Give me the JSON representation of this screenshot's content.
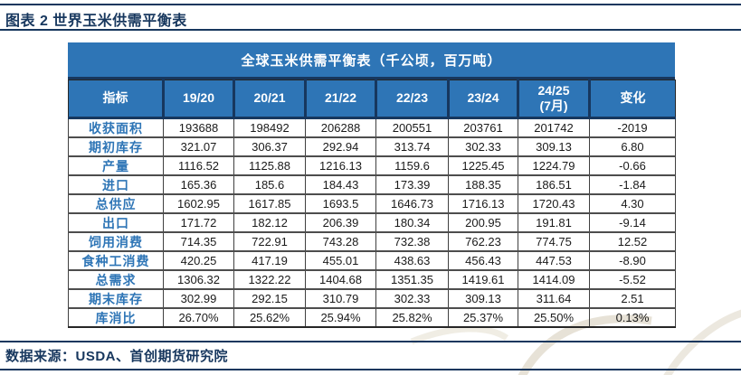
{
  "page": {
    "figure_title": "图表 2 世界玉米供需平衡表",
    "source_text": "数据来源：USDA、首创期货研究院"
  },
  "colors": {
    "header_blue": "#2E75B6",
    "navy": "#17375E",
    "row_label_blue": "#2E75B6",
    "body_text": "#1a1a1a"
  },
  "table": {
    "title": "全球玉米供需平衡表（千公顷，百万吨）",
    "columns": [
      "指标",
      "19/20",
      "20/21",
      "21/22",
      "22/23",
      "23/24",
      "24/25\n(7月)",
      "变化"
    ],
    "rows": [
      {
        "label": "收获面积",
        "values": [
          "193688",
          "198492",
          "206288",
          "200551",
          "203761",
          "201742",
          "-2019"
        ]
      },
      {
        "label": "期初库存",
        "values": [
          "321.07",
          "306.37",
          "292.94",
          "313.74",
          "302.33",
          "309.13",
          "6.80"
        ]
      },
      {
        "label": "产量",
        "values": [
          "1116.52",
          "1125.88",
          "1216.13",
          "1159.6",
          "1225.45",
          "1224.79",
          "-0.66"
        ]
      },
      {
        "label": "进口",
        "values": [
          "165.36",
          "185.6",
          "184.43",
          "173.39",
          "188.35",
          "186.51",
          "-1.84"
        ]
      },
      {
        "label": "总供应",
        "values": [
          "1602.95",
          "1617.85",
          "1693.5",
          "1646.73",
          "1716.13",
          "1720.43",
          "4.30"
        ]
      },
      {
        "label": "出口",
        "values": [
          "171.72",
          "182.12",
          "206.39",
          "180.34",
          "200.95",
          "191.81",
          "-9.14"
        ]
      },
      {
        "label": "饲用消费",
        "values": [
          "714.35",
          "722.91",
          "743.28",
          "732.38",
          "762.23",
          "774.75",
          "12.52"
        ]
      },
      {
        "label": "食种工消费",
        "values": [
          "420.25",
          "417.19",
          "455.01",
          "438.63",
          "456.43",
          "447.53",
          "-8.90"
        ]
      },
      {
        "label": "总需求",
        "values": [
          "1306.32",
          "1322.22",
          "1404.68",
          "1351.35",
          "1419.61",
          "1414.09",
          "-5.52"
        ]
      },
      {
        "label": "期末库存",
        "values": [
          "302.99",
          "292.15",
          "310.79",
          "302.33",
          "309.13",
          "311.64",
          "2.51"
        ]
      },
      {
        "label": "库消比",
        "values": [
          "26.70%",
          "25.62%",
          "25.94%",
          "25.82%",
          "25.37%",
          "25.50%",
          "0.13%"
        ]
      }
    ]
  },
  "chart_data": {
    "type": "table",
    "title": "全球玉米供需平衡表（千公顷，百万吨）",
    "categories": [
      "19/20",
      "20/21",
      "21/22",
      "22/23",
      "23/24",
      "24/25 (7月)",
      "变化"
    ],
    "series": [
      {
        "name": "收获面积",
        "values": [
          193688,
          198492,
          206288,
          200551,
          203761,
          201742,
          -2019
        ]
      },
      {
        "name": "期初库存",
        "values": [
          321.07,
          306.37,
          292.94,
          313.74,
          302.33,
          309.13,
          6.8
        ]
      },
      {
        "name": "产量",
        "values": [
          1116.52,
          1125.88,
          1216.13,
          1159.6,
          1225.45,
          1224.79,
          -0.66
        ]
      },
      {
        "name": "进口",
        "values": [
          165.36,
          185.6,
          184.43,
          173.39,
          188.35,
          186.51,
          -1.84
        ]
      },
      {
        "name": "总供应",
        "values": [
          1602.95,
          1617.85,
          1693.5,
          1646.73,
          1716.13,
          1720.43,
          4.3
        ]
      },
      {
        "name": "出口",
        "values": [
          171.72,
          182.12,
          206.39,
          180.34,
          200.95,
          191.81,
          -9.14
        ]
      },
      {
        "name": "饲用消费",
        "values": [
          714.35,
          722.91,
          743.28,
          732.38,
          762.23,
          774.75,
          12.52
        ]
      },
      {
        "name": "食种工消费",
        "values": [
          420.25,
          417.19,
          455.01,
          438.63,
          456.43,
          447.53,
          -8.9
        ]
      },
      {
        "name": "总需求",
        "values": [
          1306.32,
          1322.22,
          1404.68,
          1351.35,
          1419.61,
          1414.09,
          -5.52
        ]
      },
      {
        "name": "期末库存",
        "values": [
          302.99,
          292.15,
          310.79,
          302.33,
          309.13,
          311.64,
          2.51
        ]
      },
      {
        "name": "库消比(%)",
        "values": [
          26.7,
          25.62,
          25.94,
          25.82,
          25.37,
          25.5,
          0.13
        ]
      }
    ]
  }
}
